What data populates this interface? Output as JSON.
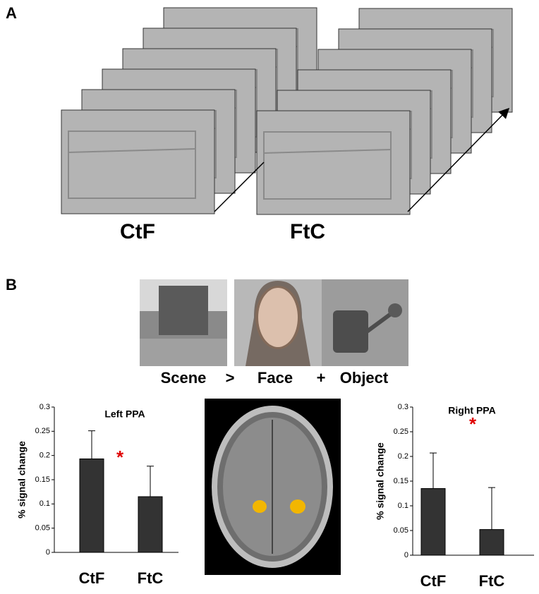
{
  "panel_a": {
    "label": "A",
    "stacks": [
      "CtF",
      "FtC"
    ]
  },
  "panel_b": {
    "label": "B",
    "contrast": [
      "Scene",
      ">",
      "Face",
      "+",
      "Object"
    ]
  },
  "chart_data": [
    {
      "type": "bar",
      "title": "Left PPA",
      "ylabel": "% signal change",
      "categories": [
        "CtF",
        "FtC"
      ],
      "values": [
        0.193,
        0.115
      ],
      "errors": [
        0.058,
        0.063
      ],
      "color": "#333333",
      "ylim": [
        0,
        0.3
      ],
      "yticks": [
        0,
        0.05,
        0.1,
        0.15,
        0.2,
        0.25,
        0.3
      ],
      "annotations": [
        "*"
      ]
    },
    {
      "type": "bar",
      "title": "Right PPA",
      "ylabel": "% signal change",
      "categories": [
        "CtF",
        "FtC"
      ],
      "values": [
        0.135,
        0.052
      ],
      "errors": [
        0.072,
        0.085
      ],
      "color": "#333333",
      "ylim": [
        0,
        0.3
      ],
      "yticks": [
        0,
        0.05,
        0.1,
        0.15,
        0.2,
        0.25,
        0.3
      ],
      "annotations": [
        "*"
      ]
    }
  ]
}
